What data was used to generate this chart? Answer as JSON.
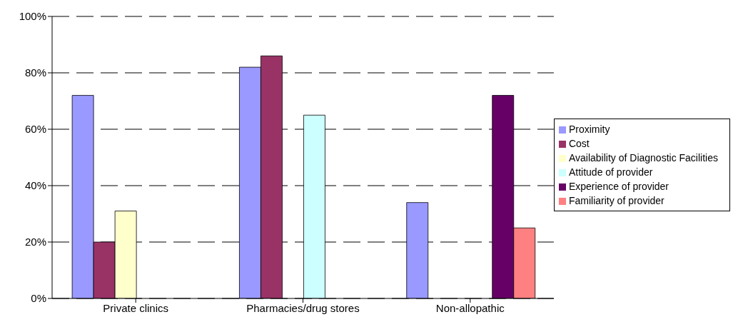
{
  "chart_data": {
    "type": "bar",
    "categories": [
      "Private clinics",
      "Pharmacies/drug stores",
      "Non-allopathic"
    ],
    "series": [
      {
        "name": "Proximity",
        "color": "#9999ff",
        "values": [
          72,
          82,
          34
        ]
      },
      {
        "name": "Cost",
        "color": "#993366",
        "values": [
          20,
          86,
          null
        ]
      },
      {
        "name": "Availability of Diagnostic Facilities",
        "color": "#ffffcc",
        "values": [
          31,
          null,
          null
        ]
      },
      {
        "name": "Attitude of provider",
        "color": "#ccffff",
        "values": [
          null,
          65,
          null
        ]
      },
      {
        "name": "Experience of provider",
        "color": "#660066",
        "values": [
          null,
          null,
          72
        ]
      },
      {
        "name": "Familiarity of provider",
        "color": "#ff8080",
        "values": [
          null,
          null,
          25
        ]
      }
    ],
    "ylim": [
      0,
      100
    ],
    "yticks": [
      {
        "value": 0,
        "label": "0%"
      },
      {
        "value": 20,
        "label": "20%"
      },
      {
        "value": 40,
        "label": "40%"
      },
      {
        "value": 60,
        "label": "60%"
      },
      {
        "value": 80,
        "label": "80%"
      },
      {
        "value": 100,
        "label": "100%"
      }
    ],
    "grid": "y",
    "legend": "right"
  }
}
